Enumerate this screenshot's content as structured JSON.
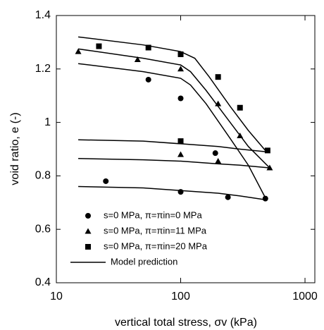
{
  "chart_data": {
    "type": "scatter",
    "xlabel": "vertical total stress, σv (kPa)",
    "ylabel": "void ratio, e (-)",
    "xscale": "log",
    "xlim": [
      10,
      1200
    ],
    "ylim": [
      0.4,
      1.4
    ],
    "xticks": [
      10,
      100,
      1000
    ],
    "yticks": [
      0.4,
      0.6,
      0.8,
      1,
      1.2,
      1.4
    ],
    "legend": "lower left",
    "series": [
      {
        "name": "s=0 MPa, π=πin=0 MPa",
        "marker": "circle",
        "color": "#000000",
        "x": [
          25,
          55,
          100,
          100,
          190,
          240,
          480
        ],
        "values": [
          0.78,
          1.16,
          1.09,
          0.74,
          0.885,
          0.72,
          0.715
        ]
      },
      {
        "name": "s=0 MPa, π=πin=11 MPa",
        "marker": "triangle",
        "color": "#000000",
        "x": [
          15,
          45,
          100,
          200,
          300,
          520,
          100,
          200
        ],
        "values": [
          1.265,
          1.235,
          1.2,
          1.07,
          0.95,
          0.83,
          0.88,
          0.855
        ]
      },
      {
        "name": "s=0 MPa, π=πin=20 MPa",
        "marker": "square",
        "color": "#000000",
        "x": [
          22,
          55,
          100,
          200,
          300,
          500,
          100
        ],
        "values": [
          1.285,
          1.28,
          1.255,
          1.17,
          1.055,
          0.895,
          0.93
        ]
      },
      {
        "name": "Model prediction",
        "marker": "line",
        "color": "#000000",
        "segments": [
          {
            "x": [
              15,
              50,
              100,
              130,
              170,
              250,
              350,
              490
            ],
            "values": [
              1.32,
              1.29,
              1.265,
              1.24,
              1.17,
              1.06,
              0.97,
              0.89
            ]
          },
          {
            "x": [
              15,
              50,
              100,
              120,
              160,
              250,
              350,
              520
            ],
            "values": [
              1.275,
              1.24,
              1.215,
              1.19,
              1.12,
              1.0,
              0.91,
              0.83
            ]
          },
          {
            "x": [
              15,
              50,
              100,
              120,
              160,
              250,
              350,
              490
            ],
            "values": [
              1.22,
              1.19,
              1.165,
              1.14,
              1.07,
              0.94,
              0.84,
              0.71
            ]
          },
          {
            "x": [
              15,
              50,
              100,
              200,
              300,
              490
            ],
            "values": [
              0.935,
              0.93,
              0.92,
              0.91,
              0.9,
              0.89
            ]
          },
          {
            "x": [
              15,
              50,
              100,
              200,
              300,
              520
            ],
            "values": [
              0.865,
              0.86,
              0.855,
              0.845,
              0.84,
              0.83
            ]
          },
          {
            "x": [
              15,
              50,
              100,
              200,
              300,
              490
            ],
            "values": [
              0.76,
              0.755,
              0.745,
              0.735,
              0.725,
              0.71
            ]
          }
        ]
      }
    ]
  }
}
